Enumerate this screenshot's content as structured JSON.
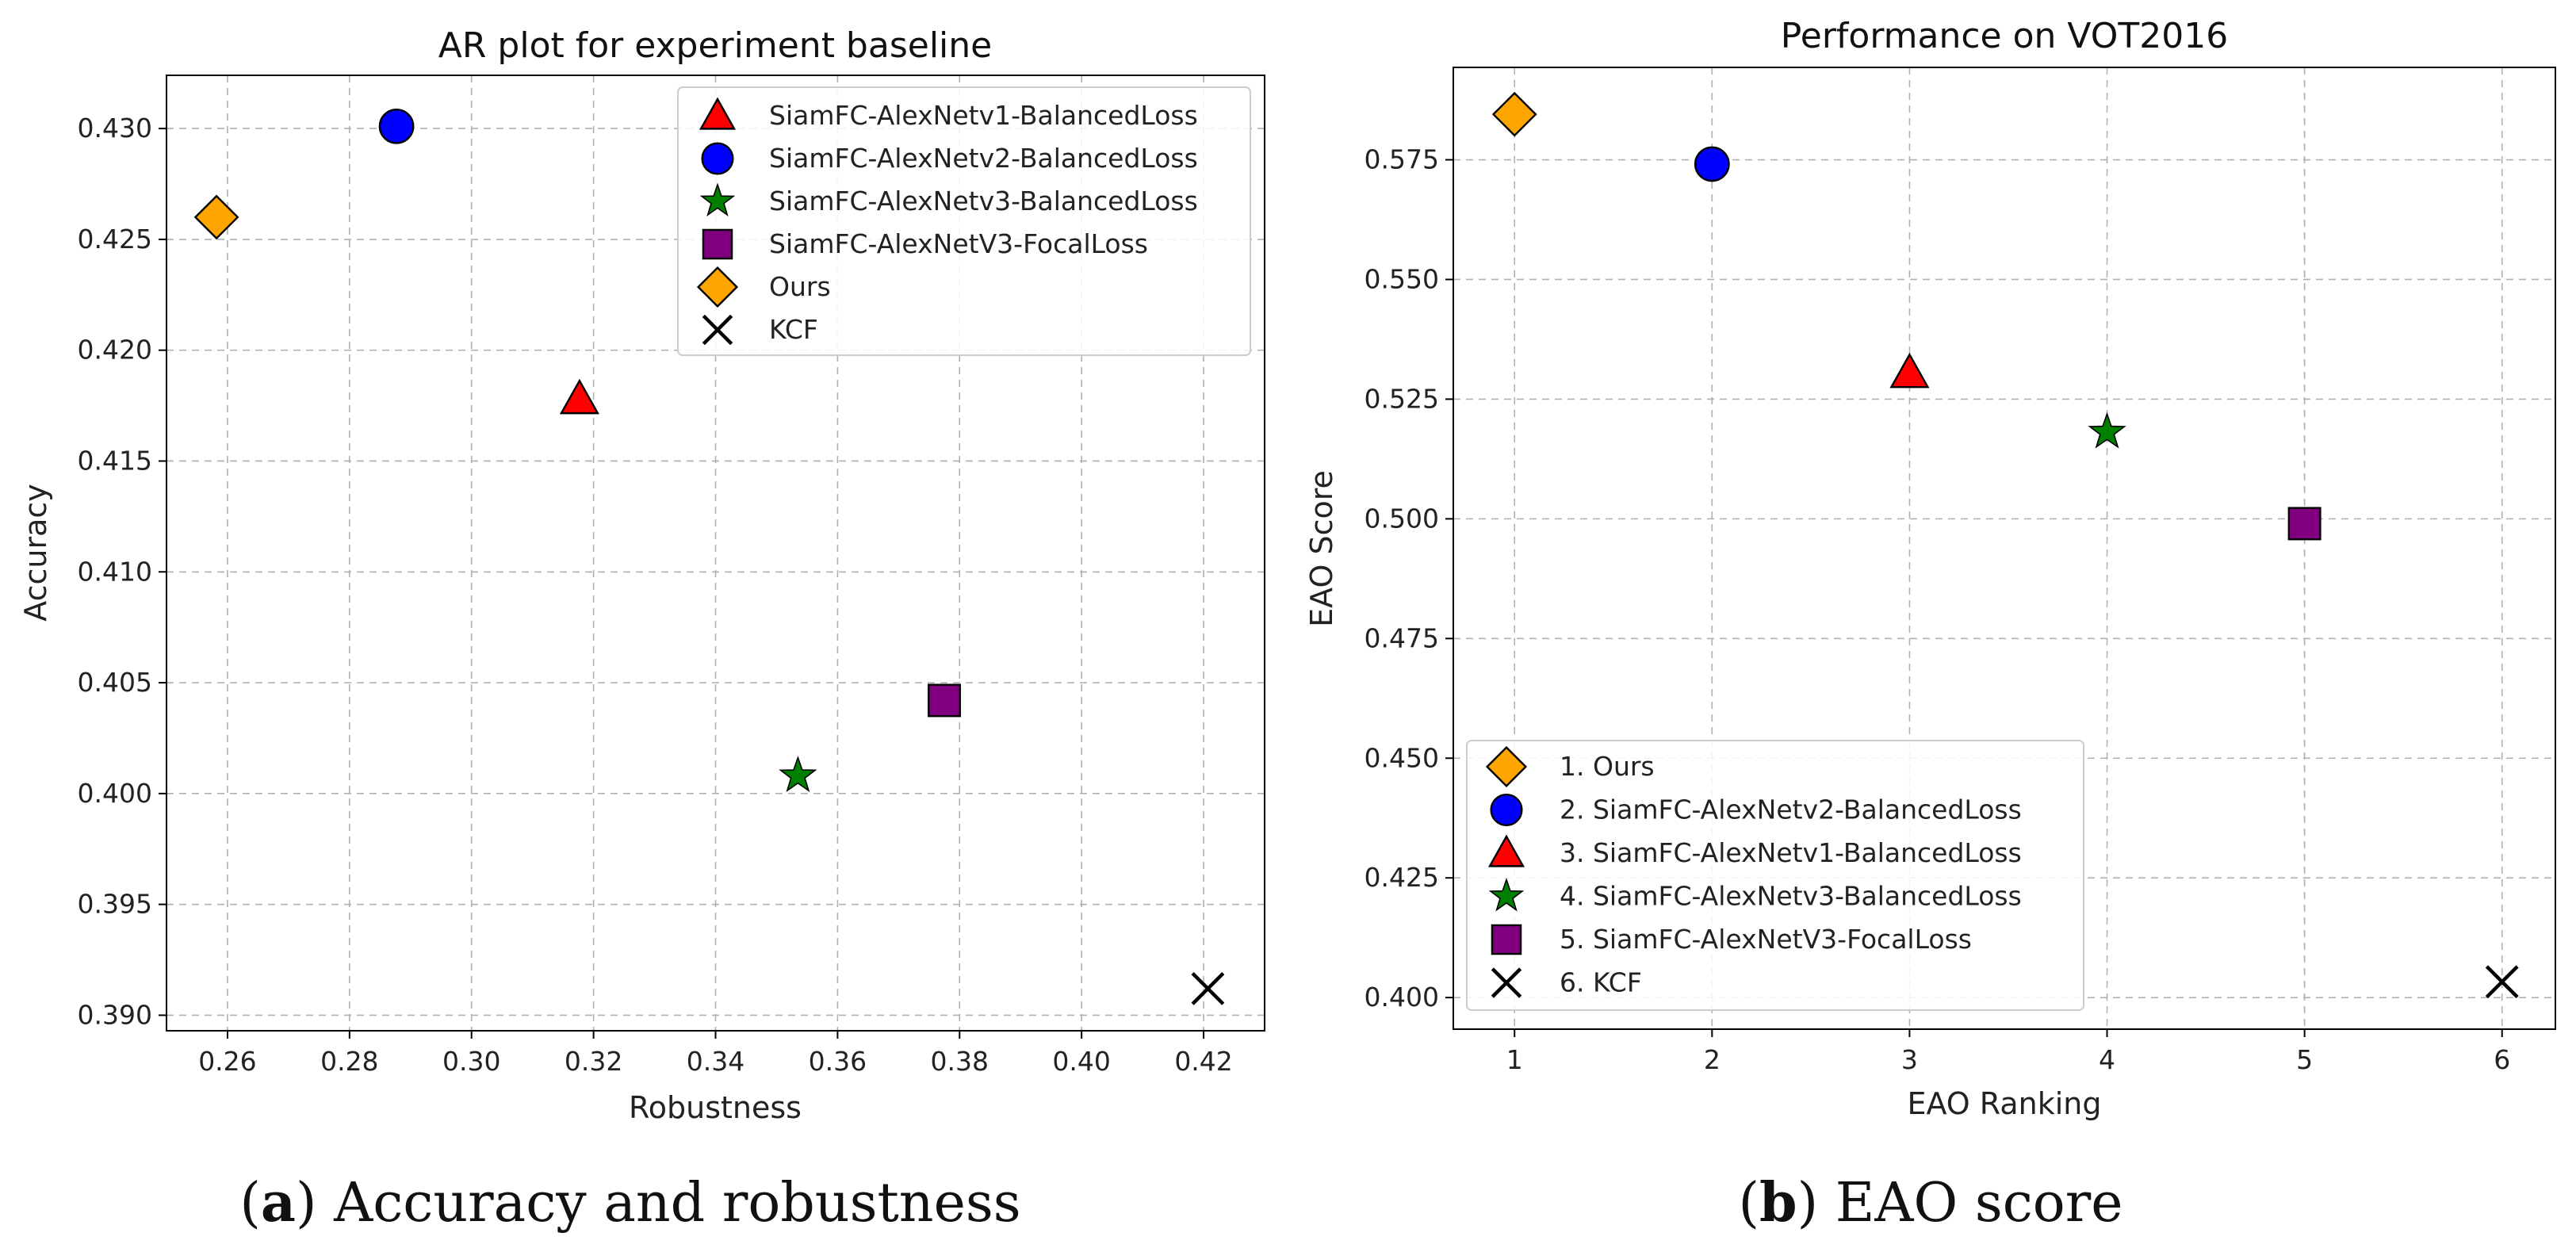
{
  "chart_data": [
    {
      "type": "scatter",
      "title": "AR plot for experiment baseline",
      "xlabel": "Robustness",
      "ylabel": "Accuracy",
      "xlim": [
        0.25,
        0.43
      ],
      "ylim": [
        0.3893,
        0.4324
      ],
      "xticks": [
        0.26,
        0.28,
        0.3,
        0.32,
        0.34,
        0.36,
        0.38,
        0.4,
        0.42
      ],
      "xtick_labels": [
        "0.26",
        "0.28",
        "0.30",
        "0.32",
        "0.34",
        "0.36",
        "0.38",
        "0.40",
        "0.42"
      ],
      "yticks": [
        0.39,
        0.395,
        0.4,
        0.405,
        0.41,
        0.415,
        0.42,
        0.425,
        0.43
      ],
      "ytick_labels": [
        "0.390",
        "0.395",
        "0.400",
        "0.405",
        "0.410",
        "0.415",
        "0.420",
        "0.425",
        "0.430"
      ],
      "grid": true,
      "legend_position": "top-right",
      "series": [
        {
          "name": "SiamFC-AlexNetv1-BalancedLoss",
          "marker": "triangle",
          "color": "#ff0000",
          "x": 0.3177,
          "y": 0.4178
        },
        {
          "name": "SiamFC-AlexNetv2-BalancedLoss",
          "marker": "circle",
          "color": "#0000ff",
          "x": 0.2877,
          "y": 0.4301
        },
        {
          "name": "SiamFC-AlexNetv3-BalancedLoss",
          "marker": "star",
          "color": "#008000",
          "x": 0.3535,
          "y": 0.4008
        },
        {
          "name": "SiamFC-AlexNetV3-FocalLoss",
          "marker": "square",
          "color": "#800080",
          "x": 0.3775,
          "y": 0.4042
        },
        {
          "name": "Ours",
          "marker": "diamond",
          "color": "#ffa500",
          "x": 0.2582,
          "y": 0.426
        },
        {
          "name": "KCF",
          "marker": "x",
          "color": "#000000",
          "x": 0.4207,
          "y": 0.3912
        }
      ]
    },
    {
      "type": "scatter",
      "title": "Performance on VOT2016",
      "xlabel": "EAO Ranking",
      "ylabel": "EAO Score",
      "xlim": [
        0.69,
        6.27
      ],
      "ylim": [
        0.3934,
        0.5943
      ],
      "xticks": [
        1,
        2,
        3,
        4,
        5,
        6
      ],
      "xtick_labels": [
        "1",
        "2",
        "3",
        "4",
        "5",
        "6"
      ],
      "yticks": [
        0.4,
        0.425,
        0.45,
        0.475,
        0.5,
        0.525,
        0.55,
        0.575
      ],
      "ytick_labels": [
        "0.400",
        "0.425",
        "0.450",
        "0.475",
        "0.500",
        "0.525",
        "0.550",
        "0.575"
      ],
      "grid": true,
      "legend_position": "lower-left",
      "series": [
        {
          "name": "1. Ours",
          "marker": "diamond",
          "color": "#ffa500",
          "x": 1,
          "y": 0.5845
        },
        {
          "name": "2. SiamFC-AlexNetv2-BalancedLoss",
          "marker": "circle",
          "color": "#0000ff",
          "x": 2,
          "y": 0.5741
        },
        {
          "name": "3. SiamFC-AlexNetv1-BalancedLoss",
          "marker": "triangle",
          "color": "#ff0000",
          "x": 3,
          "y": 0.5305
        },
        {
          "name": "4. SiamFC-AlexNetv3-BalancedLoss",
          "marker": "star",
          "color": "#008000",
          "x": 4,
          "y": 0.5181
        },
        {
          "name": "5. SiamFC-AlexNetV3-FocalLoss",
          "marker": "square",
          "color": "#800080",
          "x": 5,
          "y": 0.499
        },
        {
          "name": "6. KCF",
          "marker": "x",
          "color": "#000000",
          "x": 6,
          "y": 0.4033
        }
      ]
    }
  ],
  "captions": {
    "a": {
      "label": "a",
      "text": " Accuracy and robustness"
    },
    "b": {
      "label": "b",
      "text": " EAO score"
    }
  },
  "colors": {
    "grid": "#b0b0b0",
    "axes": "#000000",
    "legend_border": "#cccccc"
  }
}
